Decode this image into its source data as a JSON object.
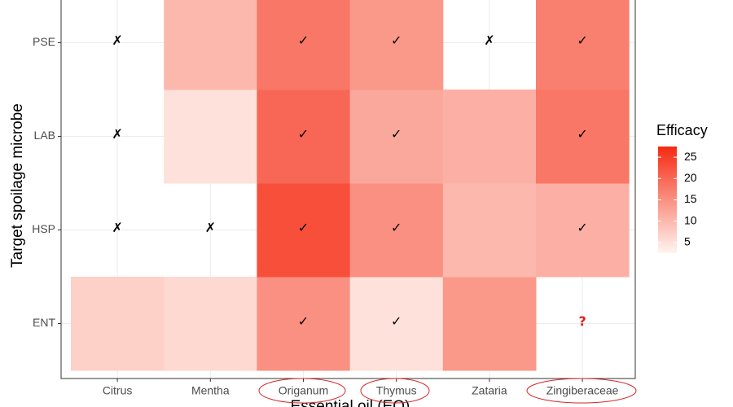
{
  "chart_data": {
    "type": "heatmap",
    "x_label": "Essential oil (EO)",
    "y_label": "Target spoilage microbe",
    "x_categories": [
      "Citrus",
      "Mentha",
      "Origanum",
      "Thymus",
      "Zataria",
      "Zingiberaceae"
    ],
    "y_categories": [
      "ENT",
      "HSP",
      "LAB",
      "PSE"
    ],
    "values": [
      [
        7,
        6,
        15,
        5,
        14,
        null
      ],
      [
        null,
        null,
        23,
        15,
        10,
        11
      ],
      [
        null,
        5,
        20,
        12,
        11,
        18
      ],
      [
        null,
        10,
        18,
        14,
        null,
        17
      ]
    ],
    "labels": [
      [
        null,
        null,
        "✓",
        "✓",
        null,
        "?"
      ],
      [
        "✗",
        "✗",
        "✓",
        "✓",
        null,
        "✓"
      ],
      [
        "✗",
        null,
        "✓",
        "✓",
        null,
        "✓"
      ],
      [
        "✗",
        null,
        "✓",
        "✓",
        "✗",
        "✓"
      ]
    ],
    "label_colors": [
      [
        null,
        null,
        "#000000",
        "#000000",
        null,
        "#e31a1c"
      ],
      [
        "#000000",
        "#000000",
        "#000000",
        "#000000",
        null,
        "#000000"
      ],
      [
        "#000000",
        null,
        "#000000",
        "#000000",
        null,
        "#000000"
      ],
      [
        "#000000",
        null,
        "#000000",
        "#000000",
        "#000000",
        "#000000"
      ]
    ],
    "legend_title": "Efficacy",
    "clim": [
      2.5,
      27.5
    ],
    "cticks": [
      5,
      10,
      15,
      20,
      25
    ],
    "low_color": "#fff5f0",
    "high_color": "#f52a12",
    "grid": true
  }
}
